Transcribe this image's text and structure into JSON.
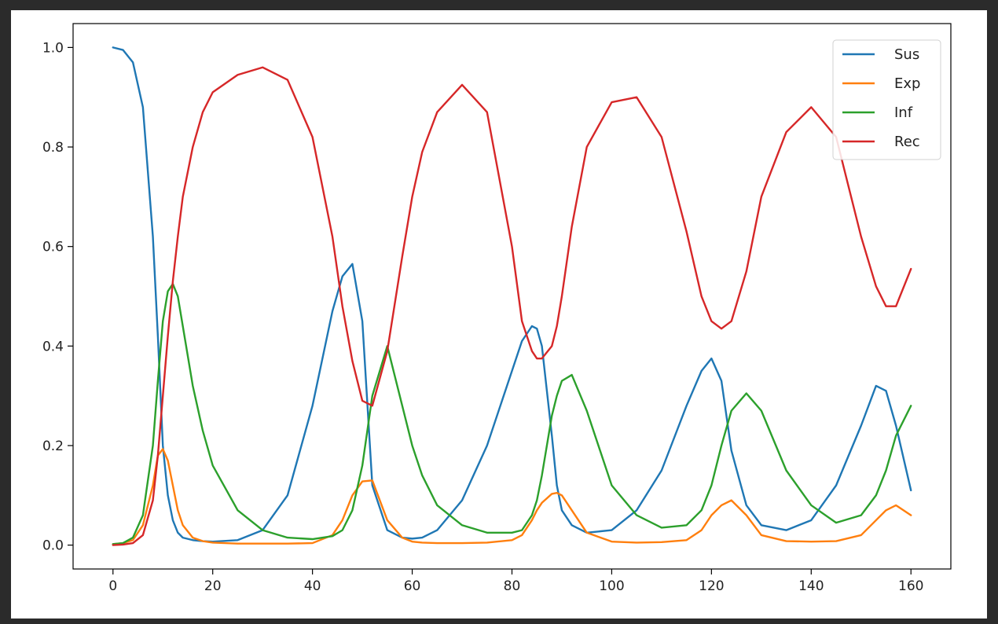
{
  "chart_data": {
    "type": "line",
    "title": "",
    "xlabel": "",
    "ylabel": "",
    "xlim": [
      -8,
      168
    ],
    "ylim": [
      -0.048,
      1.048
    ],
    "xticks": [
      0,
      20,
      40,
      60,
      80,
      100,
      120,
      140,
      160
    ],
    "xtick_labels": [
      "0",
      "20",
      "40",
      "60",
      "80",
      "100",
      "120",
      "140",
      "160"
    ],
    "yticks": [
      0.0,
      0.2,
      0.4,
      0.6,
      0.8,
      1.0
    ],
    "ytick_labels": [
      "0.0",
      "0.2",
      "0.4",
      "0.6",
      "0.8",
      "1.0"
    ],
    "grid": false,
    "legend_position": "top-right",
    "x": [
      0,
      2,
      4,
      6,
      8,
      9,
      10,
      11,
      12,
      13,
      14,
      16,
      18,
      20,
      25,
      30,
      35,
      40,
      44,
      46,
      48,
      50,
      52,
      55,
      58,
      60,
      62,
      65,
      70,
      75,
      80,
      82,
      84,
      85,
      86,
      88,
      89,
      90,
      92,
      95,
      100,
      105,
      110,
      115,
      118,
      120,
      122,
      124,
      127,
      130,
      135,
      140,
      145,
      150,
      153,
      155,
      157,
      160
    ],
    "series": [
      {
        "name": "Sus",
        "color": "#1f77b4",
        "values": [
          1.0,
          0.995,
          0.97,
          0.88,
          0.62,
          0.42,
          0.2,
          0.1,
          0.05,
          0.025,
          0.015,
          0.01,
          0.008,
          0.007,
          0.01,
          0.03,
          0.1,
          0.28,
          0.47,
          0.54,
          0.565,
          0.45,
          0.12,
          0.03,
          0.015,
          0.013,
          0.015,
          0.03,
          0.09,
          0.2,
          0.35,
          0.41,
          0.44,
          0.435,
          0.4,
          0.22,
          0.12,
          0.07,
          0.04,
          0.025,
          0.03,
          0.07,
          0.15,
          0.28,
          0.35,
          0.375,
          0.33,
          0.19,
          0.08,
          0.04,
          0.03,
          0.05,
          0.12,
          0.24,
          0.32,
          0.31,
          0.24,
          0.11
        ]
      },
      {
        "name": "Exp",
        "color": "#ff7f0e",
        "values": [
          0.002,
          0.004,
          0.01,
          0.04,
          0.12,
          0.18,
          0.193,
          0.17,
          0.12,
          0.07,
          0.04,
          0.015,
          0.008,
          0.005,
          0.003,
          0.003,
          0.003,
          0.004,
          0.02,
          0.05,
          0.1,
          0.128,
          0.13,
          0.05,
          0.015,
          0.007,
          0.005,
          0.004,
          0.004,
          0.005,
          0.01,
          0.02,
          0.05,
          0.07,
          0.085,
          0.103,
          0.105,
          0.1,
          0.07,
          0.025,
          0.007,
          0.005,
          0.006,
          0.01,
          0.03,
          0.06,
          0.08,
          0.09,
          0.06,
          0.02,
          0.008,
          0.007,
          0.008,
          0.02,
          0.05,
          0.07,
          0.08,
          0.06
        ]
      },
      {
        "name": "Inf",
        "color": "#2ca02c",
        "values": [
          0.002,
          0.004,
          0.015,
          0.06,
          0.2,
          0.33,
          0.45,
          0.51,
          0.525,
          0.5,
          0.44,
          0.32,
          0.23,
          0.16,
          0.07,
          0.03,
          0.015,
          0.012,
          0.018,
          0.03,
          0.07,
          0.16,
          0.3,
          0.4,
          0.28,
          0.2,
          0.14,
          0.08,
          0.04,
          0.025,
          0.025,
          0.03,
          0.06,
          0.09,
          0.14,
          0.26,
          0.3,
          0.33,
          0.342,
          0.27,
          0.12,
          0.06,
          0.035,
          0.04,
          0.07,
          0.12,
          0.2,
          0.27,
          0.305,
          0.27,
          0.15,
          0.08,
          0.045,
          0.06,
          0.1,
          0.15,
          0.22,
          0.28
        ]
      },
      {
        "name": "Rec",
        "color": "#d62728",
        "values": [
          0.0,
          0.001,
          0.004,
          0.02,
          0.09,
          0.18,
          0.3,
          0.42,
          0.53,
          0.62,
          0.7,
          0.8,
          0.87,
          0.91,
          0.945,
          0.96,
          0.935,
          0.82,
          0.62,
          0.48,
          0.37,
          0.29,
          0.28,
          0.39,
          0.58,
          0.7,
          0.79,
          0.87,
          0.925,
          0.87,
          0.6,
          0.45,
          0.39,
          0.375,
          0.375,
          0.4,
          0.44,
          0.5,
          0.64,
          0.8,
          0.89,
          0.9,
          0.82,
          0.63,
          0.5,
          0.45,
          0.435,
          0.45,
          0.55,
          0.7,
          0.83,
          0.88,
          0.82,
          0.62,
          0.52,
          0.48,
          0.48,
          0.555
        ]
      }
    ]
  }
}
